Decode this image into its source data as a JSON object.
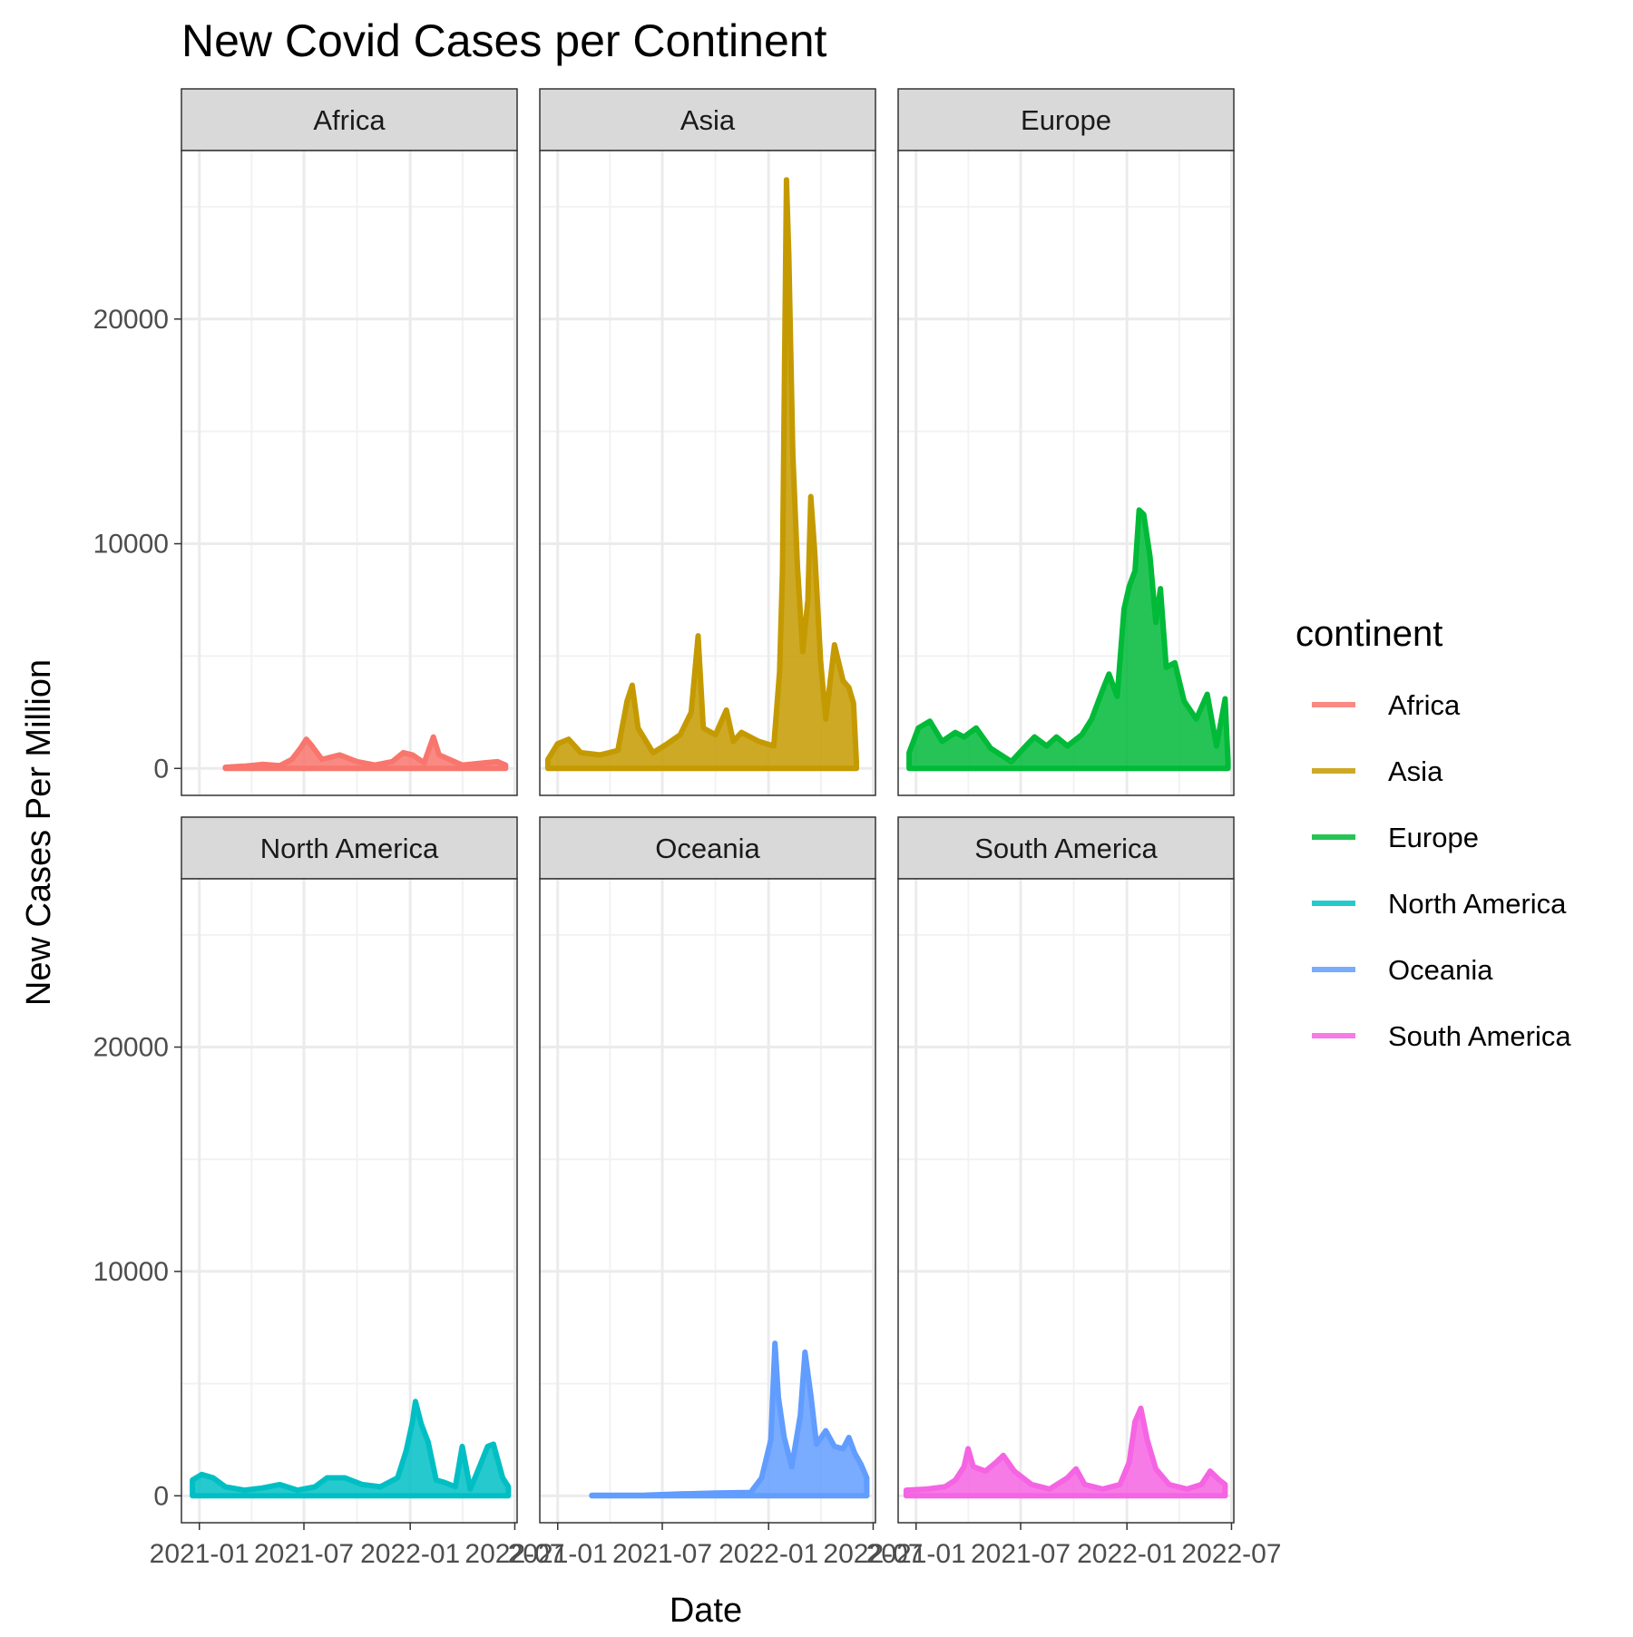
{
  "chart_data": {
    "type": "area",
    "title": "New Covid Cases per Continent",
    "xlabel": "Date",
    "ylabel": "New Cases Per Million",
    "x_ticks": [
      "2021-01",
      "2021-07",
      "2022-01",
      "2022-07"
    ],
    "y_ticks": [
      0,
      10000,
      20000
    ],
    "xlim": [
      "2020-12-01",
      "2022-07-05"
    ],
    "ylim": [
      -1200,
      27500
    ],
    "grid": true,
    "facet": "continent",
    "legend": {
      "title": "continent",
      "position": "right"
    },
    "series": [
      {
        "name": "Africa",
        "color": "#F8766D",
        "points": [
          [
            "2021-02-15",
            50
          ],
          [
            "2021-03-20",
            100
          ],
          [
            "2021-04-20",
            180
          ],
          [
            "2021-05-20",
            120
          ],
          [
            "2021-06-10",
            400
          ],
          [
            "2021-06-25",
            900
          ],
          [
            "2021-07-05",
            1300
          ],
          [
            "2021-07-15",
            1000
          ],
          [
            "2021-08-01",
            400
          ],
          [
            "2021-09-01",
            600
          ],
          [
            "2021-10-01",
            300
          ],
          [
            "2021-11-01",
            150
          ],
          [
            "2021-12-01",
            300
          ],
          [
            "2021-12-20",
            700
          ],
          [
            "2022-01-05",
            600
          ],
          [
            "2022-01-25",
            250
          ],
          [
            "2022-02-10",
            1400
          ],
          [
            "2022-02-20",
            600
          ],
          [
            "2022-03-10",
            400
          ],
          [
            "2022-04-01",
            150
          ],
          [
            "2022-05-10",
            250
          ],
          [
            "2022-06-01",
            300
          ],
          [
            "2022-06-15",
            150
          ]
        ]
      },
      {
        "name": "Asia",
        "color": "#C49A00",
        "points": [
          [
            "2020-12-15",
            400
          ],
          [
            "2021-01-01",
            1100
          ],
          [
            "2021-01-20",
            1300
          ],
          [
            "2021-02-10",
            700
          ],
          [
            "2021-03-15",
            600
          ],
          [
            "2021-04-15",
            800
          ],
          [
            "2021-05-01",
            3000
          ],
          [
            "2021-05-10",
            3700
          ],
          [
            "2021-05-20",
            1800
          ],
          [
            "2021-06-15",
            700
          ],
          [
            "2021-07-10",
            1100
          ],
          [
            "2021-08-01",
            1500
          ],
          [
            "2021-08-20",
            2500
          ],
          [
            "2021-09-01",
            5900
          ],
          [
            "2021-09-10",
            1800
          ],
          [
            "2021-10-01",
            1500
          ],
          [
            "2021-10-20",
            2600
          ],
          [
            "2021-11-01",
            1200
          ],
          [
            "2021-11-15",
            1600
          ],
          [
            "2021-12-15",
            1200
          ],
          [
            "2022-01-10",
            1000
          ],
          [
            "2022-01-20",
            4300
          ],
          [
            "2022-01-25",
            8800
          ],
          [
            "2022-02-01",
            26200
          ],
          [
            "2022-02-05",
            22800
          ],
          [
            "2022-02-12",
            14000
          ],
          [
            "2022-02-20",
            9000
          ],
          [
            "2022-03-01",
            5200
          ],
          [
            "2022-03-10",
            7500
          ],
          [
            "2022-03-15",
            12100
          ],
          [
            "2022-03-22",
            9600
          ],
          [
            "2022-04-01",
            4800
          ],
          [
            "2022-04-10",
            2200
          ],
          [
            "2022-04-25",
            5500
          ],
          [
            "2022-05-10",
            3900
          ],
          [
            "2022-05-20",
            3600
          ],
          [
            "2022-05-28",
            2900
          ],
          [
            "2022-06-02",
            300
          ]
        ]
      },
      {
        "name": "Europe",
        "color": "#00BA38",
        "points": [
          [
            "2020-12-20",
            700
          ],
          [
            "2021-01-05",
            1800
          ],
          [
            "2021-01-25",
            2100
          ],
          [
            "2021-02-15",
            1200
          ],
          [
            "2021-03-10",
            1600
          ],
          [
            "2021-03-25",
            1400
          ],
          [
            "2021-04-15",
            1800
          ],
          [
            "2021-05-10",
            900
          ],
          [
            "2021-06-15",
            300
          ],
          [
            "2021-07-10",
            1000
          ],
          [
            "2021-07-25",
            1400
          ],
          [
            "2021-08-15",
            1000
          ],
          [
            "2021-09-01",
            1400
          ],
          [
            "2021-09-20",
            1000
          ],
          [
            "2021-10-15",
            1500
          ],
          [
            "2021-11-01",
            2200
          ],
          [
            "2021-11-20",
            3500
          ],
          [
            "2021-12-01",
            4200
          ],
          [
            "2021-12-15",
            3200
          ],
          [
            "2021-12-27",
            7100
          ],
          [
            "2022-01-05",
            8100
          ],
          [
            "2022-01-15",
            8800
          ],
          [
            "2022-01-22",
            11500
          ],
          [
            "2022-01-30",
            11300
          ],
          [
            "2022-02-10",
            9400
          ],
          [
            "2022-02-20",
            6500
          ],
          [
            "2022-02-28",
            8000
          ],
          [
            "2022-03-10",
            4500
          ],
          [
            "2022-03-25",
            4700
          ],
          [
            "2022-04-10",
            3000
          ],
          [
            "2022-05-01",
            2200
          ],
          [
            "2022-05-20",
            3300
          ],
          [
            "2022-06-05",
            1000
          ],
          [
            "2022-06-20",
            3100
          ],
          [
            "2022-06-25",
            300
          ]
        ]
      },
      {
        "name": "North America",
        "color": "#00BFC4",
        "points": [
          [
            "2020-12-20",
            700
          ],
          [
            "2021-01-05",
            950
          ],
          [
            "2021-01-25",
            800
          ],
          [
            "2021-02-15",
            400
          ],
          [
            "2021-03-20",
            250
          ],
          [
            "2021-04-20",
            350
          ],
          [
            "2021-05-20",
            500
          ],
          [
            "2021-06-20",
            250
          ],
          [
            "2021-07-20",
            400
          ],
          [
            "2021-08-10",
            800
          ],
          [
            "2021-09-10",
            800
          ],
          [
            "2021-10-10",
            500
          ],
          [
            "2021-11-10",
            400
          ],
          [
            "2021-12-10",
            800
          ],
          [
            "2021-12-25",
            2000
          ],
          [
            "2022-01-05",
            3300
          ],
          [
            "2022-01-10",
            4200
          ],
          [
            "2022-01-20",
            3200
          ],
          [
            "2022-02-01",
            2400
          ],
          [
            "2022-02-15",
            700
          ],
          [
            "2022-03-01",
            600
          ],
          [
            "2022-03-20",
            400
          ],
          [
            "2022-04-01",
            2200
          ],
          [
            "2022-04-15",
            300
          ],
          [
            "2022-05-01",
            1300
          ],
          [
            "2022-05-15",
            2200
          ],
          [
            "2022-05-25",
            2300
          ],
          [
            "2022-06-10",
            800
          ],
          [
            "2022-06-20",
            400
          ]
        ]
      },
      {
        "name": "Oceania",
        "color": "#619CFF",
        "points": [
          [
            "2021-03-01",
            20
          ],
          [
            "2021-06-01",
            30
          ],
          [
            "2021-08-01",
            80
          ],
          [
            "2021-10-01",
            120
          ],
          [
            "2021-12-01",
            150
          ],
          [
            "2021-12-20",
            800
          ],
          [
            "2022-01-05",
            2500
          ],
          [
            "2022-01-12",
            6800
          ],
          [
            "2022-01-18",
            4400
          ],
          [
            "2022-01-28",
            2600
          ],
          [
            "2022-02-10",
            1300
          ],
          [
            "2022-02-25",
            3600
          ],
          [
            "2022-03-05",
            6400
          ],
          [
            "2022-03-15",
            4500
          ],
          [
            "2022-03-25",
            2300
          ],
          [
            "2022-04-10",
            2900
          ],
          [
            "2022-04-25",
            2200
          ],
          [
            "2022-05-10",
            2100
          ],
          [
            "2022-05-20",
            2600
          ],
          [
            "2022-05-30",
            1900
          ],
          [
            "2022-06-10",
            1400
          ],
          [
            "2022-06-20",
            800
          ]
        ]
      },
      {
        "name": "South America",
        "color": "#F564E3",
        "points": [
          [
            "2020-12-15",
            250
          ],
          [
            "2021-01-20",
            300
          ],
          [
            "2021-02-20",
            400
          ],
          [
            "2021-03-10",
            700
          ],
          [
            "2021-03-25",
            1300
          ],
          [
            "2021-04-01",
            2100
          ],
          [
            "2021-04-10",
            1300
          ],
          [
            "2021-05-01",
            1100
          ],
          [
            "2021-05-20",
            1500
          ],
          [
            "2021-06-01",
            1800
          ],
          [
            "2021-06-20",
            1100
          ],
          [
            "2021-07-20",
            500
          ],
          [
            "2021-08-20",
            300
          ],
          [
            "2021-09-20",
            800
          ],
          [
            "2021-10-05",
            1200
          ],
          [
            "2021-10-20",
            500
          ],
          [
            "2021-11-20",
            300
          ],
          [
            "2021-12-20",
            500
          ],
          [
            "2022-01-05",
            1500
          ],
          [
            "2022-01-15",
            3300
          ],
          [
            "2022-01-25",
            3900
          ],
          [
            "2022-02-05",
            2500
          ],
          [
            "2022-02-20",
            1200
          ],
          [
            "2022-03-15",
            500
          ],
          [
            "2022-04-15",
            300
          ],
          [
            "2022-05-10",
            500
          ],
          [
            "2022-05-25",
            1100
          ],
          [
            "2022-06-10",
            700
          ],
          [
            "2022-06-20",
            500
          ]
        ]
      }
    ]
  }
}
